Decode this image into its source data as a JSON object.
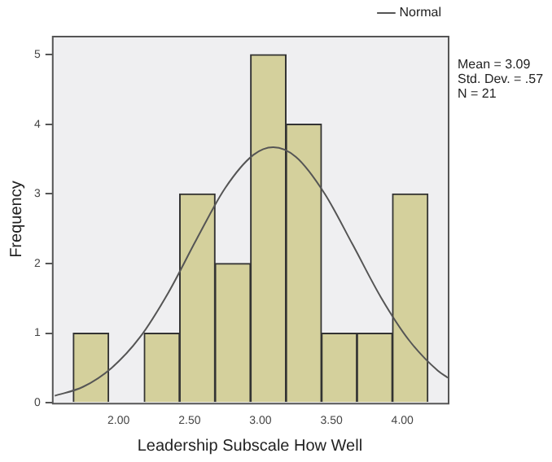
{
  "chart_data": {
    "type": "histogram",
    "xlabel": "Leadership Subscale How Well",
    "ylabel": "Frequency",
    "bins": [
      1.68,
      1.93,
      2.18,
      2.43,
      2.68,
      2.93,
      3.18,
      3.43,
      3.68,
      3.93,
      4.18
    ],
    "series": [
      {
        "color": "#d4d09c",
        "values": [
          1,
          0,
          1,
          3,
          2,
          5,
          4,
          1,
          1,
          3
        ]
      },
      {
        "type": "line",
        "name": "Normal",
        "color": "#555555",
        "x": [
          1.55,
          1.75,
          1.95,
          2.15,
          2.35,
          2.55,
          2.75,
          2.95,
          3.09,
          3.25,
          3.45,
          3.65,
          3.85,
          4.05,
          4.25,
          4.32
        ],
        "values": [
          0.1,
          0.23,
          0.5,
          0.94,
          1.58,
          2.35,
          3.08,
          3.56,
          3.67,
          3.53,
          3.01,
          2.27,
          1.51,
          0.89,
          0.46,
          0.36
        ]
      }
    ],
    "xlim": [
      1.53,
      4.32
    ],
    "xticks": [
      {
        "value": 2,
        "label": "2.00"
      },
      {
        "value": 2.5,
        "label": "2.50"
      },
      {
        "value": 3,
        "label": "3.00"
      },
      {
        "value": 3.5,
        "label": "3.50"
      },
      {
        "value": 4,
        "label": "4.00"
      }
    ],
    "ylim": [
      0,
      5.27
    ],
    "yticks": [
      0,
      1,
      2,
      3,
      4,
      5
    ],
    "legend": "top right",
    "grid": false,
    "marker": "none",
    "annotations": [
      "Mean = 3.09",
      "Std. Dev. = .57",
      "N = 21"
    ]
  }
}
